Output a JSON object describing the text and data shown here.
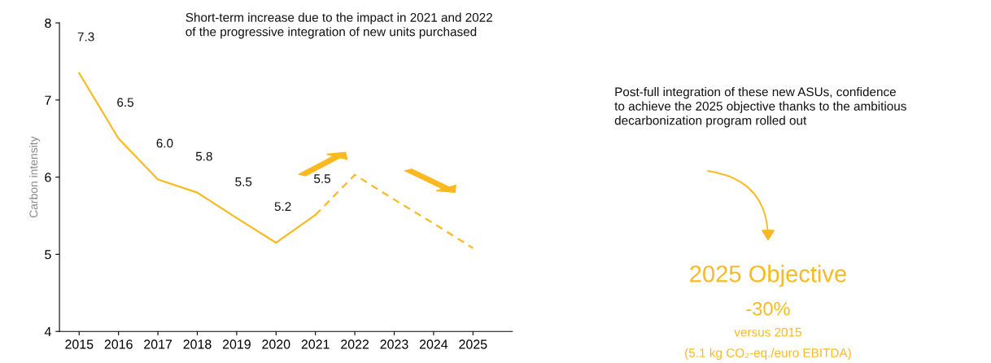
{
  "chart_data": {
    "type": "line",
    "ylabel": "Carbon intensity",
    "categories": [
      "2015",
      "2016",
      "2017",
      "2018",
      "2019",
      "2020",
      "2021",
      "2022",
      "2023",
      "2024",
      "2025"
    ],
    "series": [
      {
        "color": "#fbb921",
        "line_style": "solid",
        "values": [
          7.35,
          6.5,
          5.97,
          5.8,
          5.47,
          5.15,
          5.51,
          null,
          null,
          null,
          null
        ],
        "value_labels": [
          "7.3",
          "6.5",
          "6.0",
          "5.8",
          "5.5",
          "5.2",
          "5.5",
          null,
          null,
          null,
          null
        ]
      },
      {
        "color": "#fbb921",
        "line_style": "dashed",
        "values": [
          null,
          null,
          null,
          null,
          null,
          null,
          5.51,
          6.03,
          5.71,
          5.4,
          5.08
        ]
      }
    ],
    "ylim": [
      4,
      8
    ],
    "yticks": [
      4,
      5,
      6,
      7,
      8
    ],
    "grid": false,
    "legend": false,
    "marker": "none",
    "annotations": [
      "Short-term increase due to the impact in 2021 and 2022\nof the progressive integration of new units purchased",
      "Post-full integration of these new ASUs, confidence\nto achieve the 2025 objective thanks to the ambitious\ndecarbonization program rolled out",
      "2025 Objective",
      "-30%",
      "versus 2015",
      "(5.1 kg CO₂-eq./euro EBITDA)"
    ]
  }
}
